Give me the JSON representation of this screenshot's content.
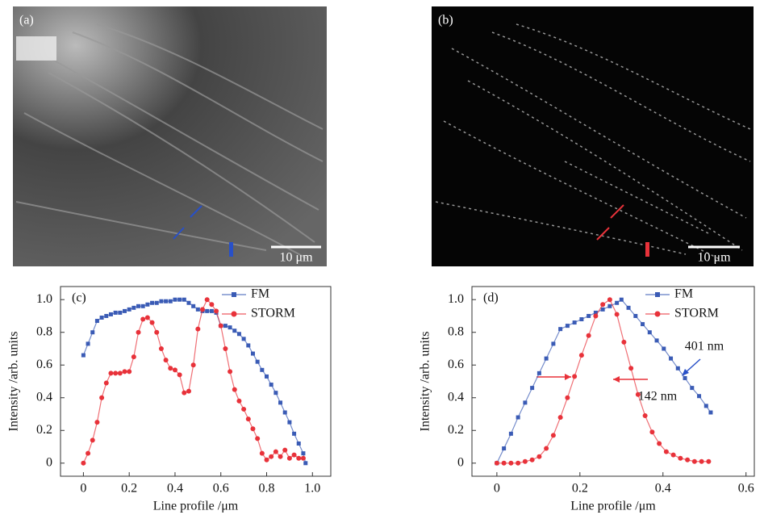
{
  "panels": [
    {
      "label": "(a)",
      "scale": "10 μm"
    },
    {
      "label": "(b)",
      "scale": "10 μm"
    }
  ],
  "chart_data": [
    {
      "type": "line",
      "panel": "(c)",
      "x_label": "Line profile /μm",
      "y_label": "Intensity /arb. units",
      "legend": "upper right",
      "xlim": [
        -0.1,
        1.08
      ],
      "ylim": [
        -0.08,
        1.08
      ],
      "xticks": [
        0,
        0.2,
        0.4,
        0.6,
        0.8,
        {
          "value": 1,
          "label": "1.0"
        }
      ],
      "yticks": [
        0,
        0.2,
        0.4,
        0.6,
        0.8,
        {
          "value": 1,
          "label": "1.0"
        }
      ],
      "series": [
        {
          "name": "FM",
          "color": "#3a5bb5",
          "marker": "square",
          "x": [
            0,
            0.02,
            0.04,
            0.06,
            0.08,
            0.1,
            0.12,
            0.14,
            0.16,
            0.18,
            0.2,
            0.22,
            0.24,
            0.26,
            0.28,
            0.3,
            0.32,
            0.34,
            0.36,
            0.38,
            0.4,
            0.42,
            0.44,
            0.46,
            0.48,
            0.5,
            0.52,
            0.54,
            0.56,
            0.58,
            0.6,
            0.62,
            0.64,
            0.66,
            0.68,
            0.7,
            0.72,
            0.74,
            0.76,
            0.78,
            0.8,
            0.82,
            0.84,
            0.86,
            0.88,
            0.9,
            0.92,
            0.94,
            0.96,
            0.97
          ],
          "values": [
            0.66,
            0.73,
            0.8,
            0.87,
            0.89,
            0.9,
            0.91,
            0.92,
            0.92,
            0.93,
            0.94,
            0.95,
            0.96,
            0.96,
            0.97,
            0.98,
            0.98,
            0.99,
            0.99,
            0.99,
            1.0,
            1.0,
            1.0,
            0.98,
            0.96,
            0.94,
            0.93,
            0.93,
            0.93,
            0.92,
            0.84,
            0.84,
            0.83,
            0.81,
            0.79,
            0.76,
            0.72,
            0.67,
            0.62,
            0.57,
            0.53,
            0.48,
            0.43,
            0.37,
            0.31,
            0.25,
            0.18,
            0.12,
            0.06,
            0.0
          ]
        },
        {
          "name": "STORM",
          "color": "#e8323a",
          "marker": "circle",
          "x": [
            0,
            0.02,
            0.04,
            0.06,
            0.08,
            0.1,
            0.12,
            0.14,
            0.16,
            0.18,
            0.2,
            0.22,
            0.24,
            0.26,
            0.28,
            0.3,
            0.32,
            0.34,
            0.36,
            0.38,
            0.4,
            0.42,
            0.44,
            0.46,
            0.48,
            0.5,
            0.52,
            0.54,
            0.56,
            0.58,
            0.6,
            0.62,
            0.64,
            0.66,
            0.68,
            0.7,
            0.72,
            0.74,
            0.76,
            0.78,
            0.8,
            0.82,
            0.84,
            0.86,
            0.88,
            0.9,
            0.92,
            0.94,
            0.96
          ],
          "values": [
            0,
            0.06,
            0.14,
            0.25,
            0.4,
            0.49,
            0.55,
            0.55,
            0.55,
            0.56,
            0.56,
            0.65,
            0.8,
            0.88,
            0.89,
            0.86,
            0.8,
            0.7,
            0.63,
            0.58,
            0.57,
            0.54,
            0.43,
            0.44,
            0.6,
            0.82,
            0.94,
            1.0,
            0.97,
            0.93,
            0.84,
            0.7,
            0.56,
            0.45,
            0.38,
            0.33,
            0.27,
            0.21,
            0.15,
            0.06,
            0.02,
            0.04,
            0.07,
            0.04,
            0.08,
            0.03,
            0.05,
            0.03,
            0.03
          ]
        }
      ]
    },
    {
      "type": "line",
      "panel": "(d)",
      "x_label": "Line profile /μm",
      "y_label": "Intensity /arb. units",
      "legend": "upper right",
      "xlim": [
        -0.06,
        0.62
      ],
      "ylim": [
        -0.08,
        1.08
      ],
      "xticks": [
        0,
        0.2,
        0.4,
        0.6
      ],
      "yticks": [
        0,
        0.2,
        0.4,
        0.6,
        0.8,
        {
          "value": 1,
          "label": "1.0"
        }
      ],
      "annotations": [
        "401 nm",
        "142 nm"
      ],
      "series": [
        {
          "name": "FM",
          "color": "#3a5bb5",
          "marker": "square",
          "x": [
            0,
            0.017,
            0.034,
            0.051,
            0.068,
            0.085,
            0.102,
            0.119,
            0.136,
            0.153,
            0.17,
            0.187,
            0.204,
            0.221,
            0.238,
            0.255,
            0.272,
            0.289,
            0.3,
            0.317,
            0.334,
            0.351,
            0.368,
            0.385,
            0.402,
            0.419,
            0.436,
            0.453,
            0.47,
            0.487,
            0.504,
            0.515
          ],
          "values": [
            0,
            0.09,
            0.18,
            0.28,
            0.37,
            0.46,
            0.55,
            0.64,
            0.73,
            0.82,
            0.84,
            0.86,
            0.88,
            0.9,
            0.92,
            0.94,
            0.96,
            0.98,
            1.0,
            0.95,
            0.9,
            0.85,
            0.8,
            0.75,
            0.7,
            0.64,
            0.58,
            0.52,
            0.46,
            0.41,
            0.35,
            0.31
          ]
        },
        {
          "name": "STORM",
          "color": "#e8323a",
          "marker": "circle",
          "x": [
            0,
            0.017,
            0.034,
            0.051,
            0.068,
            0.085,
            0.102,
            0.119,
            0.136,
            0.153,
            0.17,
            0.187,
            0.204,
            0.221,
            0.238,
            0.255,
            0.272,
            0.289,
            0.306,
            0.323,
            0.34,
            0.357,
            0.374,
            0.391,
            0.408,
            0.425,
            0.442,
            0.459,
            0.476,
            0.493,
            0.51
          ],
          "values": [
            0,
            0,
            0,
            0,
            0.01,
            0.02,
            0.04,
            0.09,
            0.17,
            0.28,
            0.4,
            0.53,
            0.66,
            0.78,
            0.9,
            0.97,
            1.0,
            0.91,
            0.74,
            0.58,
            0.42,
            0.29,
            0.19,
            0.12,
            0.07,
            0.05,
            0.03,
            0.02,
            0.01,
            0.01,
            0.01
          ]
        }
      ]
    }
  ]
}
